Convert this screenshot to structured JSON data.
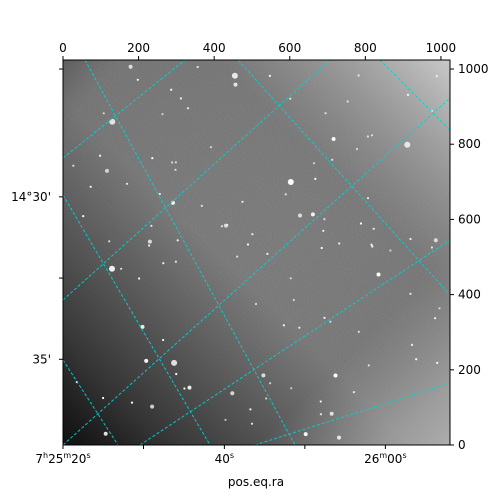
{
  "chart_data": {
    "type": "image",
    "image_type": "astronomical grayscale sky image with celestial coordinate grid",
    "xlabel": "pos.eq.ra",
    "ylabel": "",
    "pixel_axes": {
      "x": {
        "ticks": [
          0,
          200,
          400,
          600,
          800,
          1000
        ],
        "labels": [
          "0",
          "200",
          "400",
          "600",
          "800",
          "1000"
        ],
        "range": [
          0,
          1024
        ]
      },
      "y": {
        "ticks": [
          0,
          200,
          400,
          600,
          800,
          1000
        ],
        "labels": [
          "0",
          "200",
          "400",
          "600",
          "800",
          "1000"
        ],
        "range": [
          0,
          1024
        ]
      }
    },
    "world_axes": {
      "ra_labels": [
        {
          "h": "7",
          "m": "25",
          "s": "20",
          "major": true,
          "pix": 0
        },
        {
          "h": "",
          "m": "",
          "s": "40",
          "major": false,
          "pix": 427
        },
        {
          "h": "",
          "m": "26",
          "s": "00",
          "major": true,
          "pix": 853
        }
      ],
      "dec_labels": [
        {
          "text": "14°30'",
          "pix": 660
        },
        {
          "text": "35'",
          "pix": 228
        }
      ]
    },
    "grid": {
      "on": true,
      "color": "#00d5d5",
      "style": "dashed"
    },
    "colormap": "gray",
    "star_count_shown": 120
  }
}
